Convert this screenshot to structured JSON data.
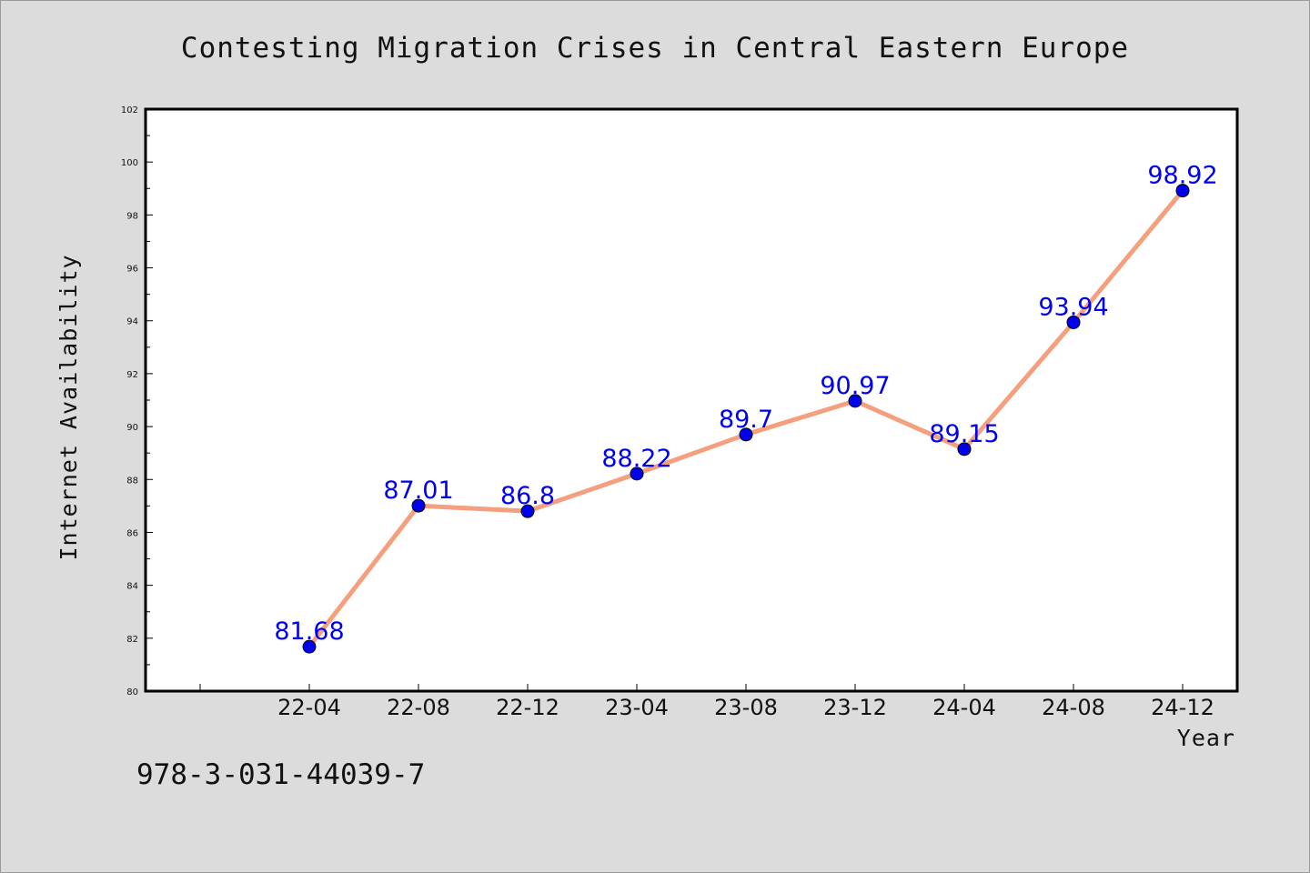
{
  "colors": {
    "background": "#dcdcdc",
    "plot_area": "#ffffff",
    "line": "#f4a07e",
    "marker": "#0000ee",
    "point_label": "#0000ee"
  },
  "chart_data": {
    "type": "line",
    "title": "Contesting Migration Crises in Central Eastern Europe",
    "xlabel": "Year",
    "ylabel": "Internet Availability",
    "categories": [
      "22-04",
      "22-08",
      "22-12",
      "23-04",
      "23-08",
      "23-12",
      "24-04",
      "24-08",
      "24-12"
    ],
    "values": [
      81.68,
      87.01,
      86.8,
      88.22,
      89.7,
      90.97,
      89.15,
      93.94,
      98.92
    ],
    "data_labels": [
      "81.68",
      "87.01",
      "86.8",
      "88.22",
      "89.7",
      "90.97",
      "89.15",
      "93.94",
      "98.92"
    ],
    "ylim": [
      80,
      102
    ],
    "yticks": [
      "80",
      "82",
      "84",
      "86",
      "88",
      "90",
      "92",
      "94",
      "96",
      "98",
      "100",
      "102"
    ],
    "grid": false,
    "legend": "none"
  },
  "footnote": "978-3-031-44039-7"
}
